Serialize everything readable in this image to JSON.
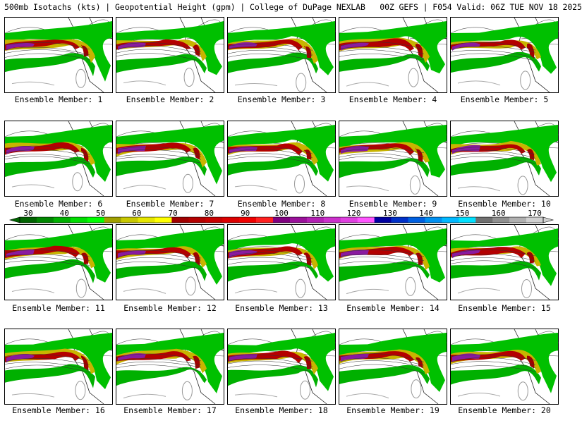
{
  "header": {
    "title": "500mb Isotachs (kts) | Geopotential Height (gpm) | College of DuPage NEXLAB   00Z GEFS | F054 Valid: 06Z TUE NOV 18 2025"
  },
  "panels": {
    "label_prefix": "Ensemble Member: ",
    "labels": [
      "Ensemble Member: 1",
      "Ensemble Member: 2",
      "Ensemble Member: 3",
      "Ensemble Member: 4",
      "Ensemble Member: 5",
      "Ensemble Member: 6",
      "Ensemble Member: 7",
      "Ensemble Member: 8",
      "Ensemble Member: 9",
      "Ensemble Member: 10",
      "Ensemble Member: 11",
      "Ensemble Member: 12",
      "Ensemble Member: 13",
      "Ensemble Member: 14",
      "Ensemble Member: 15",
      "Ensemble Member: 16",
      "Ensemble Member: 17",
      "Ensemble Member: 18",
      "Ensemble Member: 19",
      "Ensemble Member: 20"
    ]
  },
  "colorbar": {
    "ticks": [
      "30",
      "40",
      "50",
      "60",
      "70",
      "80",
      "90",
      "100",
      "110",
      "120",
      "130",
      "140",
      "150",
      "160",
      "170"
    ],
    "colors": [
      "#006400",
      "#008800",
      "#00b000",
      "#00dd00",
      "#00ff00",
      "#a0a000",
      "#c8c800",
      "#e6e600",
      "#ffff00",
      "#a00000",
      "#b40000",
      "#c80000",
      "#dc0000",
      "#f00000",
      "#ff2020",
      "#800080",
      "#9a109a",
      "#b420b4",
      "#cc30cc",
      "#e040e0",
      "#ff55ff",
      "#0000a0",
      "#0030c8",
      "#0060e0",
      "#0090f0",
      "#00b8ff",
      "#00e0ff",
      "#707070",
      "#909090",
      "#b0b0b0",
      "#d0d0d0"
    ]
  }
}
